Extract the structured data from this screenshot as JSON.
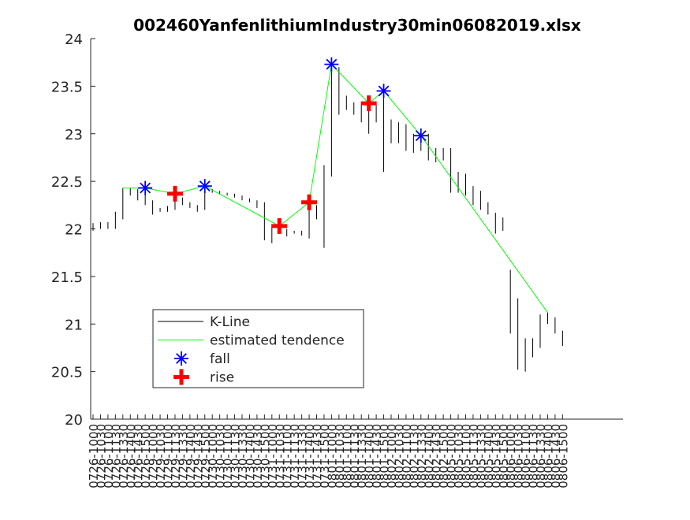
{
  "chart_data": {
    "type": "kline",
    "title": "002460YanfenlithiumIndustry30min06082019.xlsx",
    "categories": [
      "0726-1000",
      "0726-1030",
      "0726-1100",
      "0726-1130",
      "0726-1330",
      "0726-1400",
      "0726-1430",
      "0726-1500",
      "0729-1000",
      "0729-1030",
      "0729-1100",
      "0729-1130",
      "0729-1330",
      "0729-1400",
      "0729-1430",
      "0729-1500",
      "0730-1000",
      "0730-1030",
      "0730-1100",
      "0730-1130",
      "0730-1330",
      "0730-1400",
      "0730-1430",
      "0730-1500",
      "0731-1000",
      "0731-1030",
      "0731-1100",
      "0731-1130",
      "0731-1330",
      "0731-1400",
      "0731-1430",
      "0731-1500",
      "0801-1000",
      "0801-1030",
      "0801-1100",
      "0801-1130",
      "0801-1330",
      "0801-1400",
      "0801-1430",
      "0801-1500",
      "0802-1000",
      "0802-1030",
      "0802-1100",
      "0802-1130",
      "0802-1330",
      "0802-1400",
      "0802-1430",
      "0802-1500",
      "0805-1000",
      "0805-1030",
      "0805-1100",
      "0805-1130",
      "0805-1330",
      "0805-1400",
      "0805-1430",
      "0805-1500",
      "0806-1000",
      "0806-1030",
      "0806-1100",
      "0806-1130",
      "0806-1330",
      "0806-1400",
      "0806-1430",
      "0806-1500"
    ],
    "series": [
      {
        "name": "K-Line",
        "color": "#000000",
        "low": [
          21.98,
          22.0,
          22.0,
          22.0,
          22.1,
          22.35,
          22.3,
          22.25,
          22.15,
          22.18,
          22.18,
          22.2,
          22.25,
          22.22,
          22.18,
          22.2,
          22.38,
          22.37,
          22.35,
          22.33,
          22.3,
          22.28,
          22.22,
          21.88,
          21.85,
          21.95,
          21.92,
          21.95,
          21.93,
          21.9,
          22.1,
          21.8,
          22.55,
          23.2,
          23.25,
          23.2,
          23.12,
          23.0,
          23.12,
          22.6,
          22.9,
          22.9,
          22.82,
          22.8,
          22.82,
          22.72,
          22.7,
          22.72,
          22.38,
          22.38,
          22.35,
          22.25,
          22.2,
          22.15,
          21.95,
          21.98,
          20.9,
          20.52,
          20.5,
          20.65,
          20.75,
          21.0,
          20.9,
          20.77
        ],
        "high": [
          22.06,
          22.07,
          22.07,
          22.18,
          22.43,
          22.43,
          22.42,
          22.45,
          22.3,
          22.22,
          22.24,
          22.4,
          22.33,
          22.28,
          22.25,
          22.45,
          22.42,
          22.4,
          22.38,
          22.37,
          22.35,
          22.32,
          22.3,
          22.28,
          22.05,
          22.05,
          22.0,
          21.98,
          21.98,
          22.3,
          22.25,
          22.67,
          23.75,
          23.7,
          23.4,
          23.33,
          23.3,
          23.35,
          23.3,
          23.5,
          23.15,
          23.12,
          23.1,
          23.0,
          22.95,
          23.0,
          22.85,
          22.85,
          22.85,
          22.6,
          22.58,
          22.45,
          22.4,
          22.28,
          22.17,
          22.12,
          21.57,
          21.27,
          20.85,
          20.85,
          21.1,
          21.12,
          21.07,
          20.93
        ]
      },
      {
        "name": "estimated tendence",
        "color": "#00ff00",
        "x": [
          "0726-1330",
          "0726-1500",
          "0729-1130",
          "0729-1500",
          "0731-1030",
          "0731-1400",
          "0801-1000",
          "0801-1400",
          "0801-1500",
          "0802-1330",
          "0806-1400"
        ],
        "values": [
          22.43,
          22.43,
          22.37,
          22.45,
          22.03,
          22.28,
          23.73,
          23.32,
          23.45,
          22.98,
          21.12
        ]
      },
      {
        "name": "fall",
        "color": "#0000ff",
        "marker": "asterisk",
        "x": [
          "0726-1500",
          "0729-1500",
          "0801-1000",
          "0801-1500",
          "0802-1330"
        ],
        "values": [
          22.43,
          22.45,
          23.73,
          23.45,
          22.98
        ]
      },
      {
        "name": "rise",
        "color": "#ff0000",
        "marker": "plus",
        "x": [
          "0729-1130",
          "0731-1030",
          "0731-1400",
          "0801-1400"
        ],
        "values": [
          22.37,
          22.03,
          22.28,
          23.32
        ]
      }
    ],
    "ylim": [
      20,
      24
    ],
    "yticks": [
      20,
      20.5,
      21,
      21.5,
      22,
      22.5,
      23,
      23.5,
      24
    ]
  }
}
